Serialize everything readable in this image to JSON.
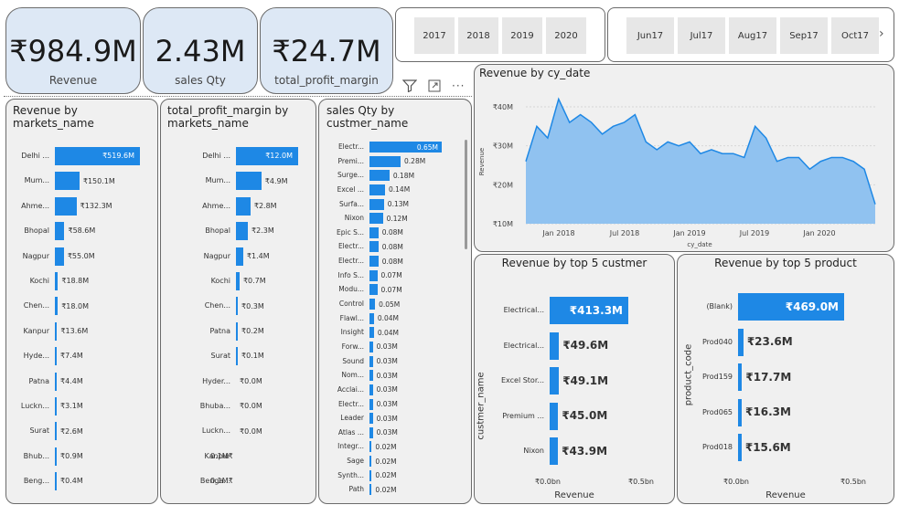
{
  "kpis": [
    {
      "value": "₹984.9M",
      "label": "Revenue"
    },
    {
      "value": "2.43M",
      "label": "sales Qty"
    },
    {
      "value": "₹24.7M",
      "label": "total_profit_margin"
    }
  ],
  "years": [
    "2017",
    "2018",
    "2019",
    "2020"
  ],
  "months": [
    "Jun17",
    "Jul17",
    "Aug17",
    "Sep17",
    "Oct17"
  ],
  "markets": {
    "title": "Revenue by markets_name",
    "rows": [
      {
        "name": "Delhi ...",
        "value": 519.6,
        "label": "₹519.6M"
      },
      {
        "name": "Mum...",
        "value": 150.1,
        "label": "₹150.1M"
      },
      {
        "name": "Ahme...",
        "value": 132.3,
        "label": "₹132.3M"
      },
      {
        "name": "Bhopal",
        "value": 58.6,
        "label": "₹58.6M"
      },
      {
        "name": "Nagpur",
        "value": 55.0,
        "label": "₹55.0M"
      },
      {
        "name": "Kochi",
        "value": 18.8,
        "label": "₹18.8M"
      },
      {
        "name": "Chen...",
        "value": 18.0,
        "label": "₹18.0M"
      },
      {
        "name": "Kanpur",
        "value": 13.6,
        "label": "₹13.6M"
      },
      {
        "name": "Hyde...",
        "value": 7.4,
        "label": "₹7.4M"
      },
      {
        "name": "Patna",
        "value": 4.4,
        "label": "₹4.4M"
      },
      {
        "name": "Luckn...",
        "value": 3.1,
        "label": "₹3.1M"
      },
      {
        "name": "Surat",
        "value": 2.6,
        "label": "₹2.6M"
      },
      {
        "name": "Bhub...",
        "value": 0.9,
        "label": "₹0.9M"
      },
      {
        "name": "Beng...",
        "value": 0.4,
        "label": "₹0.4M"
      }
    ]
  },
  "profit": {
    "title": "total_profit_margin by markets_name",
    "rows": [
      {
        "name": "Delhi ...",
        "value": 12.0,
        "label": "₹12.0M"
      },
      {
        "name": "Mum...",
        "value": 4.9,
        "label": "₹4.9M"
      },
      {
        "name": "Ahme...",
        "value": 2.8,
        "label": "₹2.8M"
      },
      {
        "name": "Bhopal",
        "value": 2.3,
        "label": "₹2.3M"
      },
      {
        "name": "Nagpur",
        "value": 1.4,
        "label": "₹1.4M"
      },
      {
        "name": "Kochi",
        "value": 0.7,
        "label": "₹0.7M"
      },
      {
        "name": "Chen...",
        "value": 0.3,
        "label": "₹0.3M"
      },
      {
        "name": "Patna",
        "value": 0.2,
        "label": "₹0.2M"
      },
      {
        "name": "Surat",
        "value": 0.1,
        "label": "₹0.1M"
      },
      {
        "name": "Hyder...",
        "value": 0.0,
        "label": "₹0.0M"
      },
      {
        "name": "Bhuba...",
        "value": 0.0,
        "label": "₹0.0M"
      },
      {
        "name": "Luckn...",
        "value": 0.0,
        "label": "₹0.0M"
      },
      {
        "name": "Kanpur",
        "value": -0.1,
        "label": "0.1M₹"
      },
      {
        "name": "Benga...",
        "value": -0.1,
        "label": "0.1M₹"
      }
    ]
  },
  "qty": {
    "title": "sales Qty by custmer_name",
    "rows": [
      {
        "name": "Electr...",
        "value": 0.65,
        "label": "0.65M"
      },
      {
        "name": "Premi...",
        "value": 0.28,
        "label": "0.28M"
      },
      {
        "name": "Surge...",
        "value": 0.18,
        "label": "0.18M"
      },
      {
        "name": "Excel ...",
        "value": 0.14,
        "label": "0.14M"
      },
      {
        "name": "Surfa...",
        "value": 0.13,
        "label": "0.13M"
      },
      {
        "name": "Nixon",
        "value": 0.12,
        "label": "0.12M"
      },
      {
        "name": "Epic S...",
        "value": 0.08,
        "label": "0.08M"
      },
      {
        "name": "Electr...",
        "value": 0.08,
        "label": "0.08M"
      },
      {
        "name": "Electr...",
        "value": 0.08,
        "label": "0.08M"
      },
      {
        "name": "Info S...",
        "value": 0.07,
        "label": "0.07M"
      },
      {
        "name": "Modu...",
        "value": 0.07,
        "label": "0.07M"
      },
      {
        "name": "Control",
        "value": 0.05,
        "label": "0.05M"
      },
      {
        "name": "Flawl...",
        "value": 0.04,
        "label": "0.04M"
      },
      {
        "name": "Insight",
        "value": 0.04,
        "label": "0.04M"
      },
      {
        "name": "Forw...",
        "value": 0.03,
        "label": "0.03M"
      },
      {
        "name": "Sound",
        "value": 0.03,
        "label": "0.03M"
      },
      {
        "name": "Nom...",
        "value": 0.03,
        "label": "0.03M"
      },
      {
        "name": "Acclai...",
        "value": 0.03,
        "label": "0.03M"
      },
      {
        "name": "Electr...",
        "value": 0.03,
        "label": "0.03M"
      },
      {
        "name": "Leader",
        "value": 0.03,
        "label": "0.03M"
      },
      {
        "name": "Atlas ...",
        "value": 0.03,
        "label": "0.03M"
      },
      {
        "name": "Integr...",
        "value": 0.02,
        "label": "0.02M"
      },
      {
        "name": "Sage",
        "value": 0.02,
        "label": "0.02M"
      },
      {
        "name": "Synth...",
        "value": 0.02,
        "label": "0.02M"
      },
      {
        "name": "Path",
        "value": 0.02,
        "label": "0.02M"
      }
    ]
  },
  "trend": {
    "title": "Revenue by cy_date",
    "ylabel": "Revenue",
    "xlabel": "cy_date",
    "yticks": [
      "₹40M",
      "₹30M",
      "₹20M",
      "₹10M"
    ],
    "xticks": [
      "Jan 2018",
      "Jul 2018",
      "Jan 2019",
      "Jul 2019",
      "Jan 2020"
    ],
    "values": [
      26,
      35,
      32,
      42,
      36,
      38,
      36,
      33,
      35,
      36,
      38,
      31,
      29,
      31,
      30,
      31,
      28,
      29,
      28,
      28,
      27,
      35,
      32,
      26,
      27,
      27,
      24,
      26,
      27,
      27,
      26,
      24,
      15
    ]
  },
  "topcust": {
    "title": "Revenue by top 5 custmer",
    "ylabel": "custmer_name",
    "xlabel": "Revenue",
    "xticks": [
      "₹0.0bn",
      "₹0.5bn"
    ],
    "rows": [
      {
        "name": "Electrical...",
        "value": 413.3,
        "label": "₹413.3M"
      },
      {
        "name": "Electrical...",
        "value": 49.6,
        "label": "₹49.6M"
      },
      {
        "name": "Excel Stor...",
        "value": 49.1,
        "label": "₹49.1M"
      },
      {
        "name": "Premium ...",
        "value": 45.0,
        "label": "₹45.0M"
      },
      {
        "name": "Nixon",
        "value": 43.9,
        "label": "₹43.9M"
      }
    ]
  },
  "topprod": {
    "title": "Revenue by top 5 product",
    "ylabel": "product_code",
    "xlabel": "Revenue",
    "xticks": [
      "₹0.0bn",
      "₹0.5bn"
    ],
    "rows": [
      {
        "name": "(Blank)",
        "value": 469.0,
        "label": "₹469.0M"
      },
      {
        "name": "Prod040",
        "value": 23.6,
        "label": "₹23.6M"
      },
      {
        "name": "Prod159",
        "value": 17.7,
        "label": "₹17.7M"
      },
      {
        "name": "Prod065",
        "value": 16.3,
        "label": "₹16.3M"
      },
      {
        "name": "Prod018",
        "value": 15.6,
        "label": "₹15.6M"
      }
    ]
  }
}
